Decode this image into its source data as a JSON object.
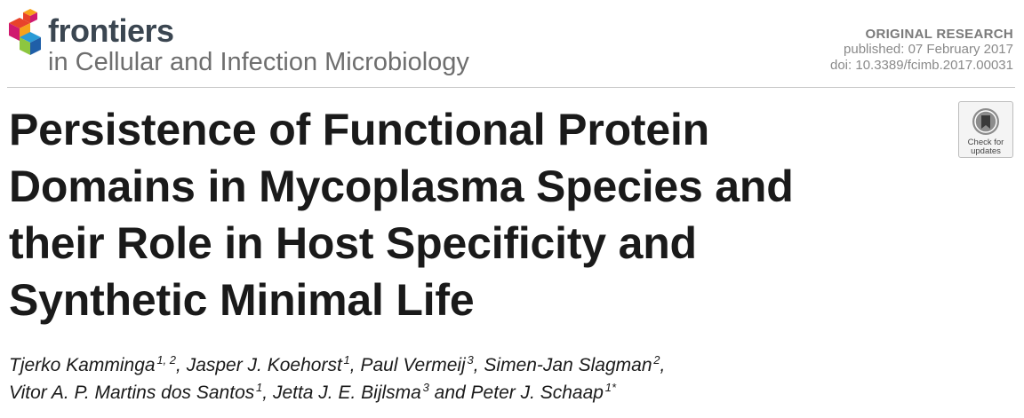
{
  "header": {
    "brand": "frontiers",
    "journal": "in Cellular and Infection Microbiology",
    "logo_icon": "frontiers-cube-logo",
    "logo_colors": [
      "#e8432b",
      "#f7a21b",
      "#2a9bd6",
      "#8dc63f",
      "#1f5fa8",
      "#d01a6f"
    ]
  },
  "meta": {
    "type": "ORIGINAL RESEARCH",
    "published": "published: 07 February 2017",
    "doi": "doi: 10.3389/fcimb.2017.00031"
  },
  "check_updates": {
    "icon": "check-for-updates-icon",
    "line1": "Check for",
    "line2": "updates"
  },
  "title": {
    "lines": [
      "Persistence of Functional Protein",
      "Domains in Mycoplasma Species and",
      "their Role in Host Specificity and",
      "Synthetic Minimal Life"
    ]
  },
  "authors": [
    {
      "name": "Tjerko Kamminga",
      "aff": "1, 2",
      "sep": ", "
    },
    {
      "name": "Jasper J. Koehorst",
      "aff": "1",
      "sep": ", "
    },
    {
      "name": "Paul Vermeij",
      "aff": "3",
      "sep": ", "
    },
    {
      "name": "Simen-Jan Slagman",
      "aff": "2",
      "sep": ","
    },
    {
      "name": "Vitor A. P. Martins dos Santos",
      "aff": "1",
      "sep": ", "
    },
    {
      "name": "Jetta J. E. Bijlsma",
      "aff": "3",
      "sep": " and "
    },
    {
      "name": "Peter J. Schaap",
      "aff": "1*",
      "sep": ""
    }
  ]
}
